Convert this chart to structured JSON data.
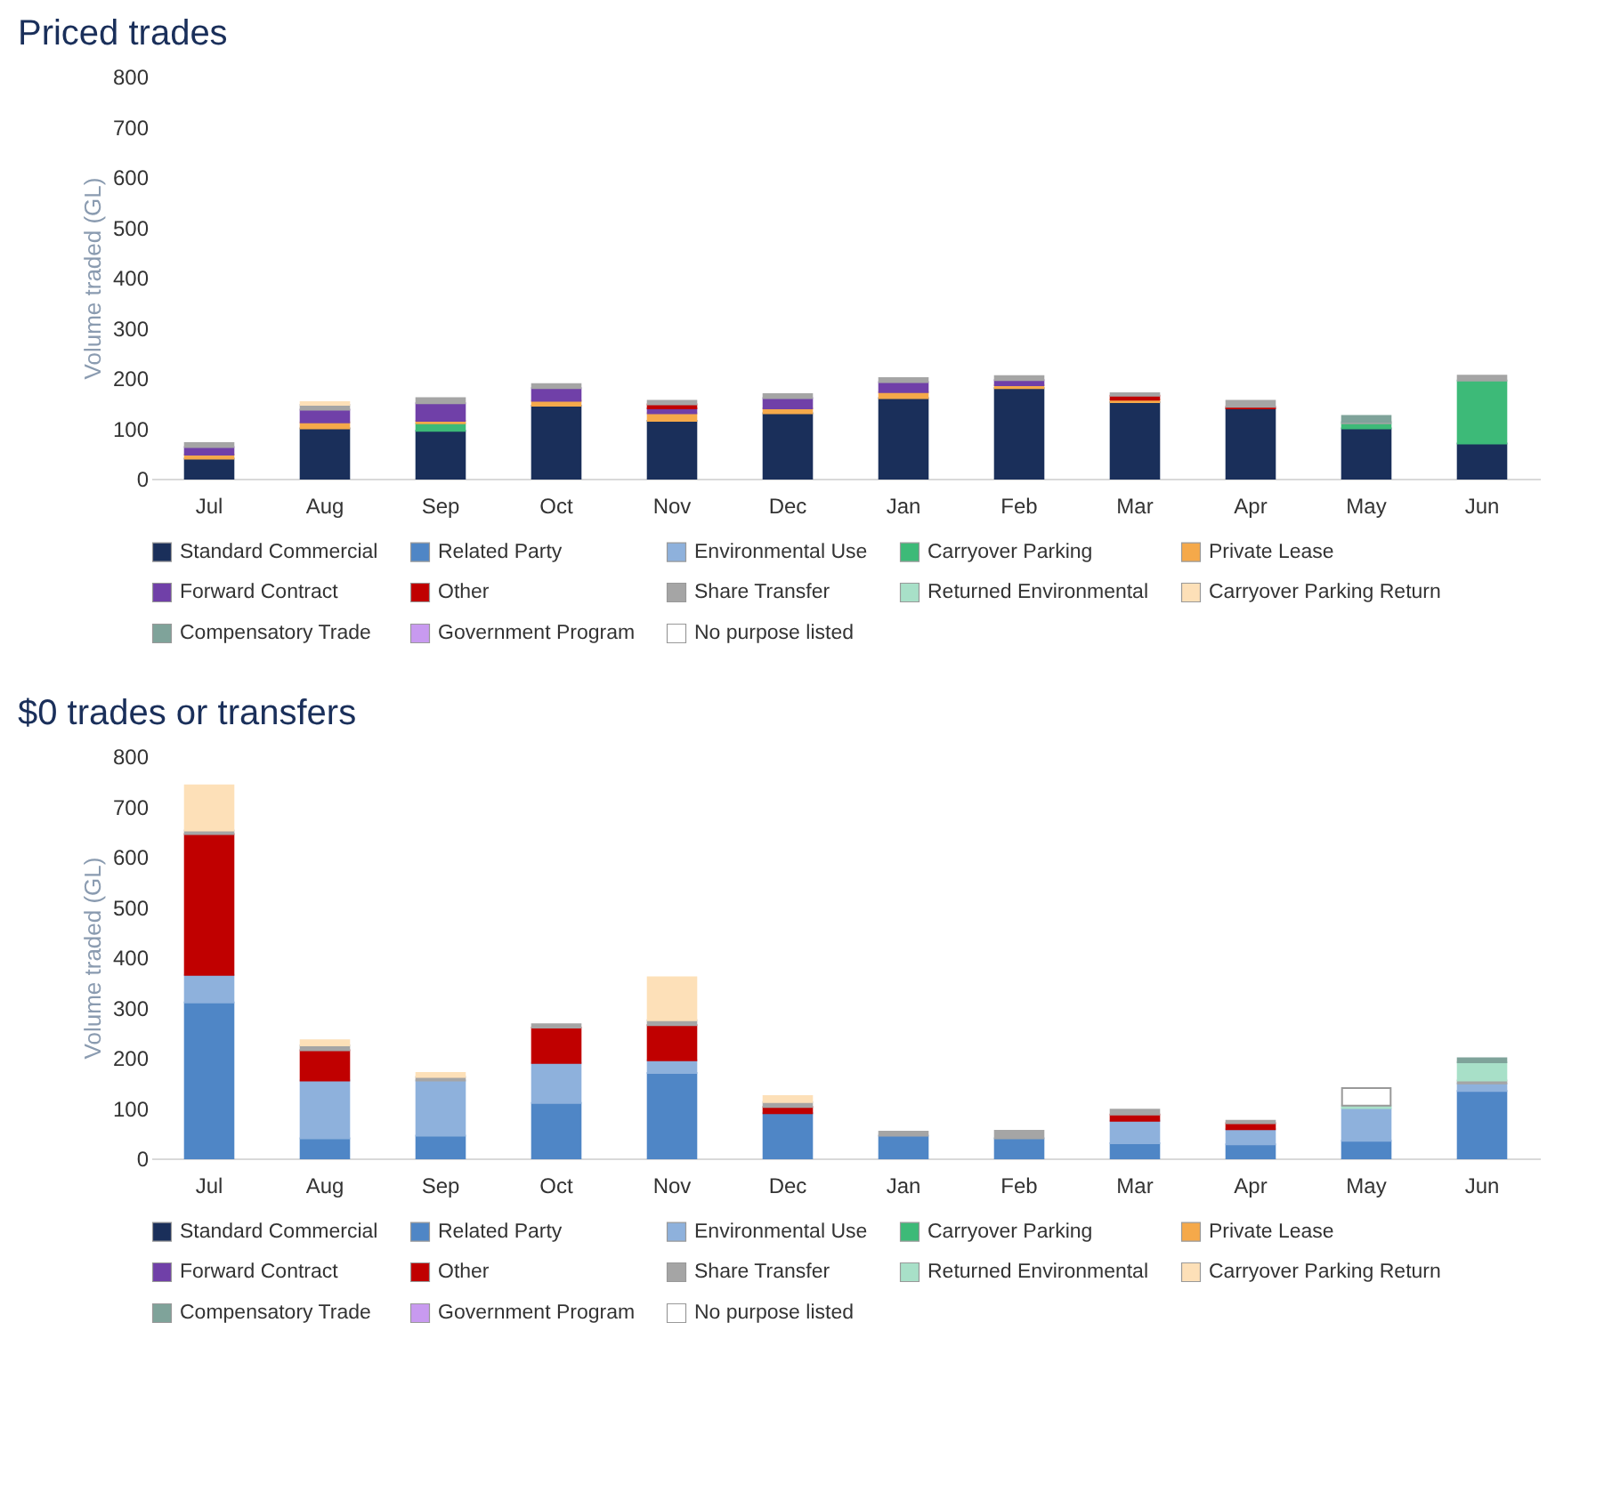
{
  "chart_data": [
    {
      "type": "bar",
      "title": "Priced trades",
      "ylabel": "Volume traded (GL)",
      "stacked": true,
      "legend": "bottom",
      "grid": false,
      "ylim": [
        0,
        800
      ],
      "yticks": [
        0,
        100,
        200,
        300,
        400,
        500,
        600,
        700,
        800
      ],
      "categories": [
        "Jul",
        "Aug",
        "Sep",
        "Oct",
        "Nov",
        "Dec",
        "Jan",
        "Feb",
        "Mar",
        "Apr",
        "May",
        "Jun"
      ],
      "series": [
        {
          "name": "Standard Commercial",
          "color": "#1a2f5a",
          "values": [
            40,
            100,
            95,
            145,
            115,
            130,
            160,
            180,
            152,
            140,
            100,
            70
          ]
        },
        {
          "name": "Related Party",
          "color": "#4f86c6",
          "values": [
            0,
            0,
            0,
            0,
            0,
            0,
            0,
            0,
            0,
            0,
            0,
            0
          ]
        },
        {
          "name": "Environmental Use",
          "color": "#8eb1dc",
          "values": [
            0,
            0,
            0,
            0,
            0,
            0,
            0,
            0,
            0,
            0,
            0,
            0
          ]
        },
        {
          "name": "Carryover Parking",
          "color": "#3dba78",
          "values": [
            0,
            0,
            15,
            0,
            0,
            0,
            0,
            0,
            0,
            0,
            10,
            125
          ]
        },
        {
          "name": "Private Lease",
          "color": "#f5a94a",
          "values": [
            8,
            12,
            5,
            10,
            15,
            10,
            12,
            6,
            5,
            0,
            0,
            0
          ]
        },
        {
          "name": "Forward Contract",
          "color": "#7040a8",
          "values": [
            15,
            25,
            35,
            25,
            10,
            20,
            20,
            10,
            0,
            0,
            0,
            0
          ]
        },
        {
          "name": "Other",
          "color": "#c00000",
          "values": [
            0,
            0,
            0,
            0,
            8,
            0,
            0,
            0,
            8,
            3,
            0,
            0
          ]
        },
        {
          "name": "Share Transfer",
          "color": "#a5a5a5",
          "values": [
            8,
            10,
            10,
            8,
            7,
            8,
            8,
            8,
            5,
            12,
            3,
            10
          ]
        },
        {
          "name": "Returned Environmental",
          "color": "#a8e0c8",
          "values": [
            0,
            0,
            0,
            0,
            0,
            0,
            0,
            0,
            0,
            0,
            0,
            0
          ]
        },
        {
          "name": "Carryover Parking Return",
          "color": "#fde0b8",
          "values": [
            0,
            5,
            0,
            0,
            0,
            0,
            0,
            0,
            0,
            0,
            0,
            0
          ]
        },
        {
          "name": "Compensatory Trade",
          "color": "#7fa39a",
          "values": [
            0,
            0,
            0,
            0,
            0,
            0,
            0,
            0,
            0,
            0,
            12,
            0
          ]
        },
        {
          "name": "Government Program",
          "color": "#c89af0",
          "values": [
            0,
            0,
            0,
            0,
            0,
            0,
            0,
            0,
            0,
            0,
            0,
            0
          ]
        },
        {
          "name": "No purpose listed",
          "color": "#ffffff",
          "values": [
            0,
            0,
            0,
            0,
            0,
            0,
            0,
            0,
            0,
            0,
            0,
            0
          ]
        }
      ]
    },
    {
      "type": "bar",
      "title": "$0 trades or transfers",
      "ylabel": "Volume traded (GL)",
      "stacked": true,
      "legend": "bottom",
      "grid": false,
      "ylim": [
        0,
        800
      ],
      "yticks": [
        0,
        100,
        200,
        300,
        400,
        500,
        600,
        700,
        800
      ],
      "categories": [
        "Jul",
        "Aug",
        "Sep",
        "Oct",
        "Nov",
        "Dec",
        "Jan",
        "Feb",
        "Mar",
        "Apr",
        "May",
        "Jun"
      ],
      "series": [
        {
          "name": "Standard Commercial",
          "color": "#1a2f5a",
          "values": [
            0,
            0,
            0,
            0,
            0,
            0,
            0,
            0,
            0,
            0,
            0,
            0
          ]
        },
        {
          "name": "Related Party",
          "color": "#4f86c6",
          "values": [
            310,
            40,
            45,
            110,
            170,
            90,
            45,
            40,
            30,
            28,
            35,
            134
          ]
        },
        {
          "name": "Environmental Use",
          "color": "#8eb1dc",
          "values": [
            55,
            115,
            110,
            80,
            25,
            0,
            0,
            0,
            45,
            30,
            65,
            15
          ]
        },
        {
          "name": "Carryover Parking",
          "color": "#3dba78",
          "values": [
            0,
            0,
            0,
            0,
            0,
            0,
            0,
            0,
            0,
            0,
            0,
            0
          ]
        },
        {
          "name": "Private Lease",
          "color": "#f5a94a",
          "values": [
            0,
            0,
            0,
            0,
            0,
            0,
            0,
            0,
            0,
            0,
            0,
            0
          ]
        },
        {
          "name": "Forward Contract",
          "color": "#7040a8",
          "values": [
            0,
            0,
            0,
            0,
            0,
            0,
            0,
            0,
            0,
            0,
            0,
            0
          ]
        },
        {
          "name": "Other",
          "color": "#c00000",
          "values": [
            280,
            60,
            0,
            70,
            70,
            12,
            0,
            0,
            12,
            12,
            0,
            0
          ]
        },
        {
          "name": "Share Transfer",
          "color": "#a5a5a5",
          "values": [
            7,
            10,
            7,
            7,
            10,
            10,
            8,
            15,
            10,
            5,
            0,
            6
          ]
        },
        {
          "name": "Returned Environmental",
          "color": "#a8e0c8",
          "values": [
            0,
            0,
            0,
            0,
            0,
            0,
            0,
            0,
            0,
            0,
            5,
            36
          ]
        },
        {
          "name": "Carryover Parking Return",
          "color": "#fde0b8",
          "values": [
            90,
            10,
            8,
            0,
            85,
            12,
            0,
            0,
            0,
            0,
            0,
            0
          ]
        },
        {
          "name": "Compensatory Trade",
          "color": "#7fa39a",
          "values": [
            0,
            0,
            0,
            0,
            0,
            0,
            0,
            0,
            0,
            0,
            0,
            8
          ]
        },
        {
          "name": "Government Program",
          "color": "#c89af0",
          "values": [
            0,
            0,
            0,
            0,
            0,
            0,
            0,
            0,
            0,
            0,
            0,
            0
          ]
        },
        {
          "name": "No purpose listed",
          "color": "#ffffff",
          "values": [
            0,
            0,
            0,
            0,
            0,
            0,
            0,
            0,
            0,
            0,
            35,
            0
          ]
        }
      ]
    }
  ]
}
